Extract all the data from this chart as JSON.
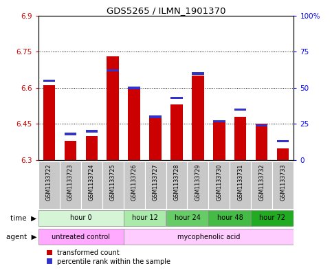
{
  "title": "GDS5265 / ILMN_1901370",
  "samples": [
    "GSM1133722",
    "GSM1133723",
    "GSM1133724",
    "GSM1133725",
    "GSM1133726",
    "GSM1133727",
    "GSM1133728",
    "GSM1133729",
    "GSM1133730",
    "GSM1133731",
    "GSM1133732",
    "GSM1133733"
  ],
  "transformed_count": [
    6.61,
    6.38,
    6.4,
    6.73,
    6.6,
    6.48,
    6.53,
    6.65,
    6.46,
    6.48,
    6.45,
    6.35
  ],
  "percentile_rank": [
    55,
    18,
    20,
    62,
    50,
    30,
    43,
    60,
    27,
    35,
    24,
    13
  ],
  "ymin": 6.3,
  "ymax": 6.9,
  "yticks": [
    6.3,
    6.45,
    6.6,
    6.75,
    6.9
  ],
  "right_yticks": [
    0,
    25,
    50,
    75,
    100
  ],
  "right_ylabels": [
    "0",
    "25",
    "50",
    "75",
    "100%"
  ],
  "bar_color": "#cc0000",
  "blue_color": "#3333cc",
  "time_groups": [
    {
      "label": "hour 0",
      "start": 0,
      "end": 3,
      "color": "#d6f5d6"
    },
    {
      "label": "hour 12",
      "start": 4,
      "end": 5,
      "color": "#aaeaaa"
    },
    {
      "label": "hour 24",
      "start": 6,
      "end": 7,
      "color": "#66cc66"
    },
    {
      "label": "hour 48",
      "start": 8,
      "end": 9,
      "color": "#44bb44"
    },
    {
      "label": "hour 72",
      "start": 10,
      "end": 11,
      "color": "#22aa22"
    }
  ],
  "agent_groups": [
    {
      "label": "untreated control",
      "start": 0,
      "end": 3,
      "color": "#ffaaff"
    },
    {
      "label": "mycophenolic acid",
      "start": 4,
      "end": 11,
      "color": "#ffccff"
    }
  ],
  "legend_items": [
    {
      "label": "transformed count",
      "color": "#cc0000"
    },
    {
      "label": "percentile rank within the sample",
      "color": "#3333cc"
    }
  ]
}
